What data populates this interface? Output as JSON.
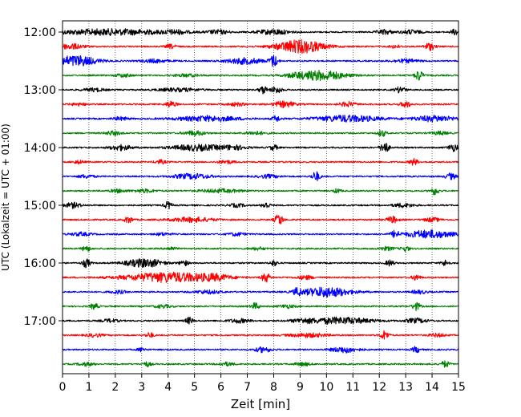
{
  "chart_data": {
    "type": "line",
    "title": "",
    "xlabel": "Zeit  [min]",
    "ylabel": "UTC (Lokalzeit = UTC + 01:00)",
    "xlim": [
      0,
      15
    ],
    "x_ticks": [
      "0",
      "1",
      "2",
      "3",
      "4",
      "5",
      "6",
      "7",
      "8",
      "9",
      "10",
      "11",
      "12",
      "13",
      "14",
      "15"
    ],
    "y_ticks": [
      "12:00",
      "13:00",
      "14:00",
      "15:00",
      "16:00",
      "17:00"
    ],
    "grid": "vertical dotted at each minute",
    "trace_interval_minutes": 15,
    "traces": [
      {
        "start": "12:00",
        "color": "#000000",
        "events": [
          [
            1.8,
            2.2,
            0.9
          ],
          [
            4.3,
            0.4,
            0.5
          ],
          [
            5.9,
            0.4,
            0.6
          ],
          [
            8.0,
            0.6,
            0.8
          ],
          [
            12.2,
            0.3,
            0.7
          ],
          [
            13.2,
            0.4,
            0.6
          ],
          [
            14.9,
            0.2,
            0.9
          ]
        ]
      },
      {
        "start": "12:15",
        "color": "#ff0000",
        "events": [
          [
            0.3,
            0.5,
            0.8
          ],
          [
            4.1,
            0.2,
            0.6
          ],
          [
            9.0,
            0.9,
            2.0
          ],
          [
            12.6,
            0.2,
            0.5
          ],
          [
            13.9,
            0.2,
            1.1
          ]
        ]
      },
      {
        "start": "12:30",
        "color": "#0000ff",
        "events": [
          [
            0.5,
            0.8,
            1.6
          ],
          [
            3.5,
            0.5,
            0.5
          ],
          [
            6.9,
            0.7,
            0.9
          ],
          [
            8.0,
            0.15,
            1.8
          ],
          [
            13.0,
            0.5,
            0.5
          ]
        ]
      },
      {
        "start": "12:45",
        "color": "#008000",
        "events": [
          [
            2.3,
            0.3,
            0.5
          ],
          [
            4.7,
            0.5,
            0.4
          ],
          [
            8.8,
            0.4,
            0.4
          ],
          [
            9.8,
            0.9,
            1.5
          ],
          [
            13.5,
            0.15,
            1.6
          ]
        ]
      },
      {
        "start": "13:00",
        "color": "#000000",
        "events": [
          [
            1.2,
            0.4,
            0.5
          ],
          [
            4.4,
            0.8,
            0.5
          ],
          [
            7.6,
            0.15,
            1.2
          ],
          [
            8.1,
            0.2,
            1.0
          ],
          [
            12.8,
            0.2,
            0.9
          ]
        ]
      },
      {
        "start": "13:15",
        "color": "#ff0000",
        "events": [
          [
            0.6,
            0.3,
            0.4
          ],
          [
            4.1,
            0.2,
            0.9
          ],
          [
            6.6,
            0.3,
            0.5
          ],
          [
            8.4,
            0.4,
            0.9
          ],
          [
            10.8,
            0.3,
            0.7
          ],
          [
            13.0,
            0.2,
            0.9
          ]
        ]
      },
      {
        "start": "13:30",
        "color": "#0000ff",
        "events": [
          [
            2.2,
            0.3,
            0.5
          ],
          [
            5.5,
            1.2,
            0.8
          ],
          [
            8.1,
            0.15,
            0.9
          ],
          [
            10.8,
            1.2,
            1.0
          ],
          [
            14.1,
            0.8,
            0.9
          ]
        ]
      },
      {
        "start": "13:45",
        "color": "#008000",
        "events": [
          [
            1.9,
            0.3,
            0.6
          ],
          [
            5.0,
            0.4,
            0.7
          ],
          [
            7.3,
            0.4,
            0.5
          ],
          [
            12.1,
            0.15,
            1.0
          ],
          [
            14.3,
            0.3,
            0.5
          ]
        ]
      },
      {
        "start": "14:00",
        "color": "#000000",
        "events": [
          [
            2.2,
            0.4,
            0.8
          ],
          [
            5.1,
            1.0,
            0.9
          ],
          [
            6.5,
            0.5,
            0.6
          ],
          [
            8.0,
            0.15,
            0.8
          ],
          [
            12.2,
            0.15,
            2.0
          ],
          [
            14.8,
            0.2,
            1.1
          ]
        ]
      },
      {
        "start": "14:15",
        "color": "#ff0000",
        "events": [
          [
            0.6,
            0.2,
            0.5
          ],
          [
            3.7,
            0.2,
            0.6
          ],
          [
            6.2,
            0.3,
            0.5
          ],
          [
            13.3,
            0.15,
            1.0
          ]
        ]
      },
      {
        "start": "14:30",
        "color": "#0000ff",
        "events": [
          [
            0.9,
            0.3,
            0.5
          ],
          [
            4.9,
            0.7,
            0.8
          ],
          [
            7.8,
            0.4,
            0.5
          ],
          [
            9.6,
            0.15,
            1.5
          ],
          [
            14.7,
            0.2,
            0.9
          ]
        ]
      },
      {
        "start": "14:45",
        "color": "#008000",
        "events": [
          [
            2.1,
            0.3,
            0.5
          ],
          [
            3.1,
            0.4,
            0.5
          ],
          [
            6.0,
            0.8,
            0.5
          ],
          [
            10.4,
            0.15,
            0.6
          ],
          [
            14.1,
            0.15,
            1.2
          ]
        ]
      },
      {
        "start": "15:00",
        "color": "#000000",
        "events": [
          [
            0.4,
            0.3,
            0.8
          ],
          [
            4.0,
            0.15,
            1.1
          ],
          [
            6.6,
            0.3,
            0.5
          ],
          [
            7.7,
            0.15,
            1.0
          ],
          [
            12.9,
            0.4,
            0.6
          ]
        ]
      },
      {
        "start": "15:15",
        "color": "#ff0000",
        "events": [
          [
            2.5,
            0.15,
            1.0
          ],
          [
            4.9,
            0.8,
            0.7
          ],
          [
            8.2,
            0.15,
            1.8
          ],
          [
            12.5,
            0.2,
            1.0
          ],
          [
            14.0,
            0.3,
            0.6
          ]
        ]
      },
      {
        "start": "15:30",
        "color": "#0000ff",
        "events": [
          [
            0.7,
            0.4,
            0.5
          ],
          [
            3.8,
            0.3,
            0.4
          ],
          [
            6.6,
            0.3,
            0.5
          ],
          [
            12.6,
            0.15,
            1.0
          ],
          [
            13.9,
            0.9,
            1.2
          ]
        ]
      },
      {
        "start": "15:45",
        "color": "#008000",
        "events": [
          [
            0.9,
            0.15,
            0.9
          ],
          [
            4.1,
            0.2,
            0.5
          ],
          [
            7.4,
            0.3,
            0.4
          ],
          [
            12.3,
            0.3,
            0.5
          ],
          [
            13.0,
            0.15,
            0.8
          ]
        ]
      },
      {
        "start": "16:00",
        "color": "#000000",
        "events": [
          [
            0.9,
            0.15,
            1.3
          ],
          [
            3.1,
            0.7,
            1.3
          ],
          [
            4.6,
            0.15,
            0.9
          ],
          [
            8.0,
            0.15,
            0.8
          ],
          [
            12.4,
            0.15,
            0.9
          ],
          [
            14.5,
            0.15,
            0.9
          ]
        ]
      },
      {
        "start": "16:15",
        "color": "#ff0000",
        "events": [
          [
            4.0,
            1.6,
            1.5
          ],
          [
            5.8,
            0.6,
            0.7
          ],
          [
            7.7,
            0.15,
            1.5
          ],
          [
            9.2,
            0.3,
            0.6
          ],
          [
            13.4,
            0.15,
            0.9
          ]
        ]
      },
      {
        "start": "16:30",
        "color": "#0000ff",
        "events": [
          [
            2.1,
            0.3,
            0.5
          ],
          [
            5.5,
            0.5,
            0.5
          ],
          [
            8.9,
            0.15,
            1.0
          ],
          [
            10.0,
            0.9,
            1.5
          ],
          [
            13.5,
            0.3,
            0.5
          ]
        ]
      },
      {
        "start": "16:45",
        "color": "#008000",
        "events": [
          [
            1.2,
            0.15,
            0.9
          ],
          [
            3.8,
            0.3,
            0.5
          ],
          [
            7.3,
            0.15,
            1.0
          ],
          [
            8.5,
            0.3,
            0.5
          ],
          [
            13.4,
            0.15,
            1.2
          ]
        ]
      },
      {
        "start": "17:00",
        "color": "#000000",
        "events": [
          [
            1.8,
            0.3,
            0.5
          ],
          [
            4.8,
            0.15,
            1.0
          ],
          [
            6.7,
            0.4,
            0.6
          ],
          [
            9.1,
            0.4,
            0.5
          ],
          [
            10.5,
            1.2,
            1.0
          ],
          [
            13.4,
            0.4,
            0.7
          ]
        ]
      },
      {
        "start": "17:15",
        "color": "#ff0000",
        "events": [
          [
            1.2,
            0.3,
            0.5
          ],
          [
            3.3,
            0.15,
            0.8
          ],
          [
            9.3,
            0.7,
            0.6
          ],
          [
            12.2,
            0.15,
            1.4
          ],
          [
            14.2,
            0.3,
            0.5
          ]
        ]
      },
      {
        "start": "17:30",
        "color": "#0000ff",
        "events": [
          [
            3.0,
            0.15,
            0.6
          ],
          [
            7.6,
            0.3,
            0.8
          ],
          [
            10.7,
            0.5,
            0.9
          ],
          [
            13.4,
            0.15,
            0.9
          ]
        ]
      },
      {
        "start": "17:45",
        "color": "#008000",
        "events": [
          [
            0.9,
            0.3,
            0.5
          ],
          [
            3.2,
            0.15,
            0.7
          ],
          [
            6.2,
            0.3,
            0.5
          ],
          [
            9.1,
            0.3,
            0.5
          ],
          [
            14.5,
            0.15,
            1.0
          ]
        ]
      }
    ]
  }
}
